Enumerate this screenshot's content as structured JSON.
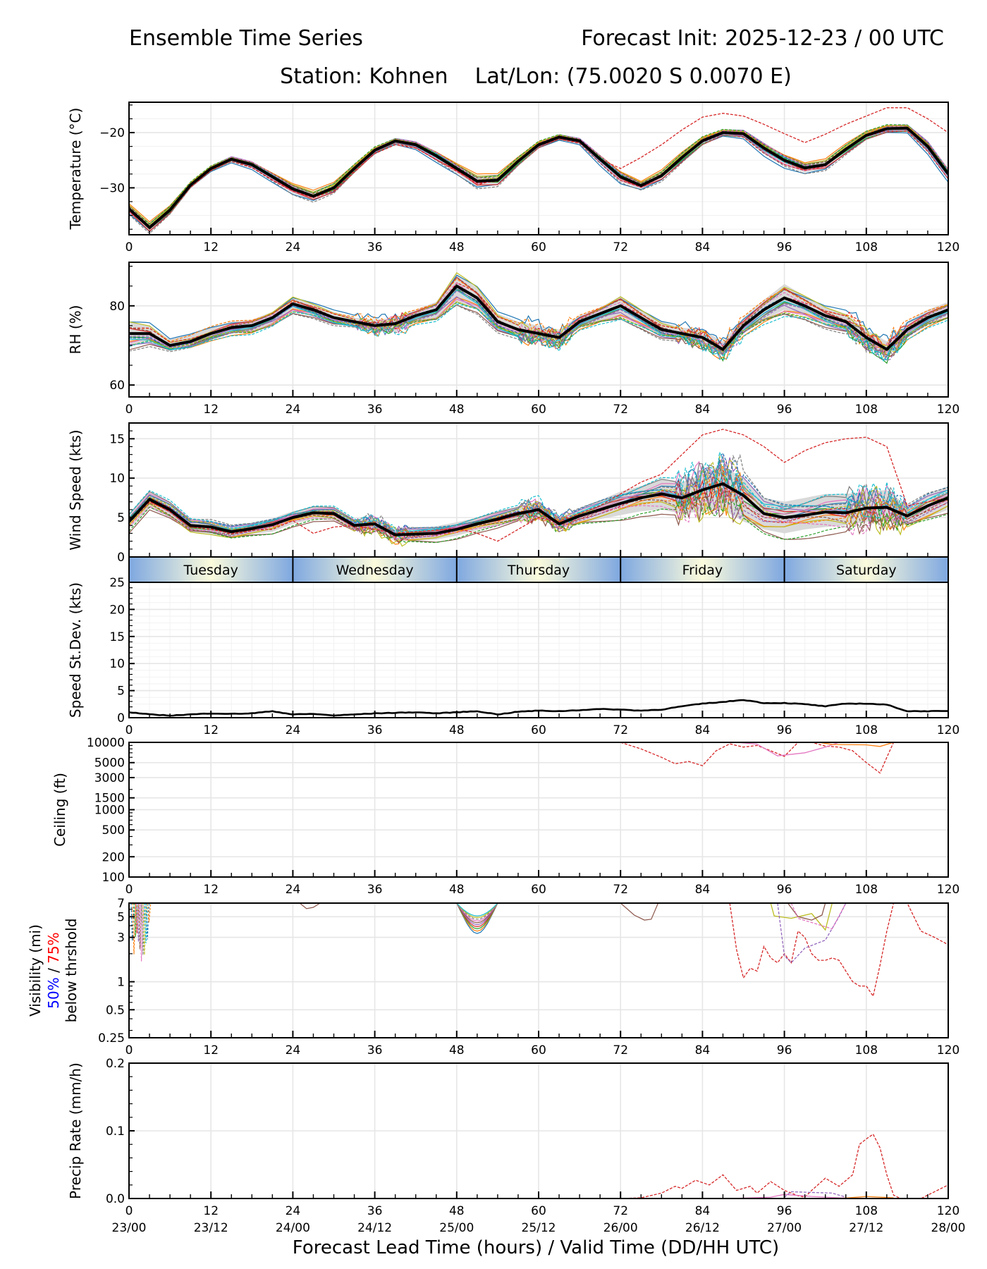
{
  "header": {
    "title_left": "Ensemble Time Series",
    "title_right": "Forecast Init: 2025-12-23 / 00 UTC",
    "subtitle": "Station: Kohnen    Lat/Lon: (75.0020 S 0.0070 E)"
  },
  "xaxis": {
    "label": "Forecast Lead Time (hours) / Valid Time (DD/HH UTC)",
    "range": [
      0,
      120
    ],
    "ticks": [
      0,
      12,
      24,
      36,
      48,
      60,
      72,
      84,
      96,
      108,
      120
    ],
    "tick_labels": [
      "0",
      "12",
      "24",
      "36",
      "48",
      "60",
      "72",
      "84",
      "96",
      "108",
      "120"
    ],
    "valid_time_labels": [
      "23/00",
      "23/12",
      "24/00",
      "24/12",
      "25/00",
      "25/12",
      "26/00",
      "26/12",
      "27/00",
      "27/12",
      "28/00"
    ]
  },
  "day_band": {
    "days": [
      "Tuesday",
      "Wednesday",
      "Thursday",
      "Friday",
      "Saturday"
    ],
    "edge_color": "#7fa8e0",
    "center_color": "#fbfbdc"
  },
  "colors": {
    "mean": "#000000",
    "spread": "#d9d9d9",
    "grid": "#e6e6e6",
    "members": [
      "#1f77b4",
      "#ff7f0e",
      "#2ca02c",
      "#d62728",
      "#9467bd",
      "#8c564b",
      "#e377c2",
      "#7f7f7f",
      "#bcbd22",
      "#17becf"
    ],
    "vis_50": "#0000ff",
    "vis_75": "#ff0000"
  },
  "chart_data": [
    {
      "id": "temperature",
      "type": "line",
      "ylabel": "Temperature (°C)",
      "ylim": [
        -38.5,
        -14.5
      ],
      "yticks": [
        -20,
        -30
      ],
      "ytick_labels": [
        "−20",
        "−30"
      ],
      "grid": true,
      "x": [
        0,
        3,
        6,
        9,
        12,
        15,
        18,
        21,
        24,
        27,
        30,
        33,
        36,
        39,
        42,
        45,
        48,
        51,
        54,
        57,
        60,
        63,
        66,
        69,
        72,
        75,
        78,
        81,
        84,
        87,
        90,
        93,
        96,
        99,
        102,
        105,
        108,
        111,
        114,
        117,
        120
      ],
      "mean": [
        -33.8,
        -37.2,
        -34.0,
        -29.5,
        -26.5,
        -24.8,
        -25.8,
        -28.0,
        -30.2,
        -31.5,
        -30.0,
        -26.5,
        -23.2,
        -21.5,
        -22.2,
        -24.2,
        -26.5,
        -28.8,
        -28.6,
        -25.2,
        -22.2,
        -20.8,
        -21.5,
        -24.8,
        -28.0,
        -29.6,
        -27.8,
        -24.5,
        -21.5,
        -20.0,
        -20.2,
        -22.8,
        -25.0,
        -26.4,
        -25.8,
        -23.0,
        -20.5,
        -19.3,
        -19.2,
        -22.5,
        -27.5
      ],
      "spread_low": [
        -34.5,
        -38.0,
        -34.6,
        -30.0,
        -27.0,
        -25.3,
        -26.4,
        -28.7,
        -31.0,
        -32.3,
        -30.8,
        -27.2,
        -23.8,
        -22.0,
        -22.8,
        -25.0,
        -27.3,
        -29.8,
        -29.5,
        -25.9,
        -22.8,
        -21.3,
        -22.0,
        -25.6,
        -28.9,
        -30.2,
        -28.6,
        -25.3,
        -22.2,
        -20.6,
        -20.9,
        -23.8,
        -26.0,
        -27.2,
        -26.6,
        -23.8,
        -21.2,
        -20.0,
        -19.9,
        -23.5,
        -28.5
      ],
      "spread_high": [
        -33.0,
        -36.4,
        -33.3,
        -29.0,
        -26.0,
        -24.3,
        -25.2,
        -27.3,
        -29.4,
        -30.7,
        -29.2,
        -25.8,
        -22.6,
        -21.0,
        -21.6,
        -23.4,
        -25.7,
        -27.8,
        -27.7,
        -24.5,
        -21.6,
        -20.3,
        -21.0,
        -24.0,
        -27.1,
        -29.0,
        -27.0,
        -23.7,
        -20.8,
        -19.4,
        -19.5,
        -21.8,
        -24.0,
        -25.6,
        -25.0,
        -22.2,
        -19.8,
        -18.6,
        -18.5,
        -21.5,
        -26.5
      ],
      "outlier_member": [
        -33.6,
        -37.5,
        -34.3,
        -29.8,
        -26.9,
        -25.0,
        -26.3,
        -28.6,
        -30.6,
        -31.8,
        -30.5,
        -27.0,
        -23.8,
        -22.2,
        -22.8,
        -24.9,
        -26.8,
        -29.5,
        -28.4,
        -25.3,
        -22.4,
        -21.2,
        -21.8,
        -24.8,
        -26.5,
        -24.5,
        -22.2,
        -19.5,
        -17.2,
        -16.5,
        -17.0,
        -18.5,
        -20.2,
        -21.8,
        -20.3,
        -18.5,
        -17.0,
        -15.5,
        -15.5,
        -17.5,
        -20.0
      ],
      "member_count": 20
    },
    {
      "id": "rh",
      "type": "line",
      "ylabel": "RH (%)",
      "ylim": [
        57,
        91
      ],
      "yticks": [
        80,
        60
      ],
      "ytick_labels": [
        "80",
        "60"
      ],
      "grid": true,
      "x": [
        0,
        3,
        6,
        9,
        12,
        15,
        18,
        21,
        24,
        27,
        30,
        33,
        36,
        39,
        42,
        45,
        48,
        51,
        54,
        57,
        60,
        63,
        66,
        69,
        72,
        75,
        78,
        81,
        84,
        87,
        90,
        93,
        96,
        99,
        102,
        105,
        108,
        111,
        114,
        117,
        120
      ],
      "mean": [
        73,
        73,
        70,
        71,
        73,
        74.5,
        75,
        77,
        80.5,
        79,
        77,
        76,
        75,
        75.5,
        77.5,
        79,
        85,
        82,
        76,
        74,
        73,
        72,
        76,
        78,
        80,
        77,
        74,
        73,
        72,
        69,
        75,
        79,
        82,
        80,
        77.5,
        76,
        72,
        69,
        74,
        77,
        79
      ],
      "spread_low": [
        70,
        70.5,
        69,
        70,
        71.5,
        73,
        73.5,
        75.5,
        78.5,
        77.5,
        75.5,
        74.5,
        73.5,
        73.5,
        76,
        77,
        81,
        79,
        74,
        72,
        71,
        70.5,
        74.5,
        76,
        77.5,
        75,
        72.5,
        71.5,
        70,
        67.5,
        73,
        76.5,
        79,
        77.5,
        75,
        73.5,
        70,
        67,
        72,
        75.5,
        77.5
      ],
      "spread_high": [
        76,
        75,
        71.5,
        73,
        74.5,
        76,
        76.5,
        78.5,
        82,
        80.5,
        78.5,
        77,
        76.5,
        77,
        79,
        81,
        88,
        84.5,
        78,
        76,
        75,
        74,
        77.5,
        79.5,
        82.5,
        79,
        76,
        74.5,
        74,
        71,
        77,
        81.5,
        85.5,
        82.5,
        79.5,
        78,
        74,
        71,
        76,
        79,
        81
      ],
      "member_count": 20
    },
    {
      "id": "wind_speed",
      "type": "line",
      "ylabel": "Wind Speed (kts)",
      "ylim": [
        0,
        17
      ],
      "yticks": [
        0,
        5,
        10,
        15
      ],
      "ytick_labels": [
        "0",
        "5",
        "10",
        "15"
      ],
      "grid": true,
      "x": [
        0,
        3,
        6,
        9,
        12,
        15,
        18,
        21,
        24,
        27,
        30,
        33,
        36,
        39,
        42,
        45,
        48,
        51,
        54,
        57,
        60,
        63,
        66,
        69,
        72,
        75,
        78,
        81,
        84,
        87,
        90,
        93,
        96,
        99,
        102,
        105,
        108,
        111,
        114,
        117,
        120
      ],
      "mean": [
        4.5,
        7.3,
        6.0,
        4.0,
        3.8,
        3.2,
        3.6,
        4.1,
        5.0,
        5.6,
        5.5,
        4.0,
        4.2,
        2.8,
        2.9,
        3.0,
        3.5,
        4.2,
        4.8,
        5.5,
        6.0,
        4.2,
        5.2,
        6.0,
        6.8,
        7.5,
        8.0,
        7.5,
        8.5,
        9.3,
        7.8,
        5.5,
        5.0,
        5.3,
        5.7,
        5.6,
        6.2,
        6.3,
        5.2,
        6.5,
        7.5
      ],
      "spread_low": [
        3.5,
        6.2,
        5.0,
        3.2,
        2.9,
        2.5,
        2.9,
        3.2,
        4.2,
        4.8,
        4.7,
        3.3,
        3.4,
        2.0,
        2.1,
        2.2,
        2.7,
        3.4,
        3.9,
        4.6,
        5.0,
        3.5,
        4.3,
        4.8,
        5.3,
        5.8,
        6.0,
        5.5,
        5.8,
        6.0,
        4.5,
        3.5,
        3.0,
        3.5,
        3.8,
        4.0,
        4.5,
        4.5,
        4.0,
        5.0,
        6.0
      ],
      "spread_high": [
        5.5,
        8.2,
        7.0,
        4.8,
        4.6,
        4.0,
        4.3,
        4.9,
        5.8,
        6.4,
        6.3,
        4.8,
        5.0,
        3.6,
        3.7,
        3.9,
        4.4,
        5.0,
        5.7,
        6.4,
        7.0,
        5.0,
        6.1,
        7.2,
        8.3,
        9.0,
        9.8,
        9.5,
        10.5,
        11.5,
        10.0,
        7.5,
        7.0,
        7.5,
        8.0,
        8.0,
        8.3,
        8.5,
        6.5,
        8.0,
        9.0
      ],
      "outlier_member": [
        4.5,
        7.0,
        5.8,
        3.8,
        3.5,
        3.0,
        3.4,
        3.5,
        4.6,
        3.0,
        3.8,
        4.0,
        3.5,
        3.0,
        3.2,
        3.4,
        3.6,
        3.0,
        2.0,
        3.5,
        5.0,
        4.5,
        5.5,
        6.5,
        8.0,
        9.5,
        10.5,
        13.0,
        15.5,
        16.2,
        15.5,
        14.0,
        12.0,
        13.5,
        14.5,
        15.0,
        15.2,
        14.0,
        6.5,
        7.0,
        7.5
      ],
      "member_count": 20
    },
    {
      "id": "speed_stdev",
      "type": "line",
      "ylabel": "Speed St.Dev. (kts)",
      "ylim": [
        0,
        25
      ],
      "yticks": [
        0,
        5,
        10,
        15,
        20,
        25
      ],
      "ytick_labels": [
        "0",
        "5",
        "10",
        "15",
        "20",
        "25"
      ],
      "grid": true,
      "x": [
        0,
        3,
        6,
        9,
        12,
        15,
        18,
        21,
        24,
        27,
        30,
        33,
        36,
        39,
        42,
        45,
        48,
        51,
        54,
        57,
        60,
        63,
        66,
        69,
        72,
        75,
        78,
        81,
        84,
        87,
        90,
        93,
        96,
        99,
        102,
        105,
        108,
        111,
        114,
        117,
        120
      ],
      "values": [
        1.0,
        0.6,
        0.4,
        0.6,
        0.8,
        0.7,
        0.8,
        1.2,
        0.6,
        0.7,
        0.4,
        0.6,
        0.8,
        0.9,
        1.0,
        0.8,
        1.0,
        1.2,
        0.6,
        1.1,
        1.3,
        1.2,
        1.4,
        1.6,
        1.5,
        1.3,
        1.5,
        2.1,
        2.6,
        2.9,
        3.3,
        2.7,
        2.7,
        2.5,
        2.1,
        2.6,
        2.6,
        2.4,
        1.2,
        1.2,
        1.2
      ]
    },
    {
      "id": "ceiling",
      "type": "line",
      "ylabel": "Ceiling (ft)",
      "yscale": "log",
      "ylim": [
        100,
        10000
      ],
      "yticks": [
        10000,
        5000,
        3000,
        1500,
        1000,
        500,
        200,
        100
      ],
      "ytick_labels": [
        "10000",
        "5000",
        "3000",
        "1500",
        "1000",
        "500",
        "200",
        "100"
      ],
      "grid": true,
      "x": [
        72,
        75,
        78,
        80,
        82,
        84,
        86,
        88,
        90,
        92,
        94,
        96,
        98,
        100,
        102,
        104,
        106,
        108,
        109,
        110,
        111,
        112
      ],
      "outlier_member": [
        10000,
        8000,
        6000,
        4800,
        5200,
        4500,
        7500,
        9500,
        8500,
        9000,
        7500,
        6200,
        10000,
        10000,
        8800,
        8500,
        7500,
        5000,
        4200,
        3500,
        6000,
        10000
      ],
      "member_count": 3
    },
    {
      "id": "visibility",
      "type": "line",
      "ylabel_lines": [
        "Visibility (mi)",
        "50% / 75%",
        "below thrshold"
      ],
      "ylabel_50": "50%",
      "ylabel_sep": " / ",
      "ylabel_75": "75%",
      "yscale": "log",
      "ylim": [
        0.25,
        7
      ],
      "yticks": [
        7,
        5,
        3,
        1,
        0.5,
        0.25
      ],
      "ytick_labels": [
        "7",
        "5",
        "3",
        "1",
        "0.5",
        "0.25"
      ],
      "grid": true,
      "x": [
        88,
        89,
        90,
        91,
        92,
        93,
        94,
        95,
        96,
        97,
        98,
        99,
        100,
        101,
        102,
        103,
        104,
        105,
        106,
        107,
        108,
        109,
        110,
        111,
        112,
        113,
        114,
        116,
        118,
        120
      ],
      "outlier_member": [
        7,
        2.2,
        1.1,
        1.4,
        1.3,
        2.4,
        1.8,
        1.6,
        2.0,
        1.6,
        3.5,
        3.0,
        2.0,
        1.7,
        1.7,
        1.8,
        1.7,
        1.3,
        1.0,
        0.9,
        0.9,
        0.7,
        1.5,
        3.5,
        7,
        7,
        7,
        3.5,
        3.0,
        2.5
      ],
      "member_count": 20
    },
    {
      "id": "precip_rate",
      "type": "line",
      "ylabel": "Precip Rate (mm/h)",
      "ylim": [
        0,
        0.2
      ],
      "yticks": [
        0.0,
        0.1,
        0.2
      ],
      "ytick_labels": [
        "0.0",
        "0.1",
        "0.2"
      ],
      "grid": true,
      "x": [
        72,
        75,
        78,
        80,
        81,
        83,
        85,
        87,
        89,
        91,
        92,
        94,
        96,
        97,
        98,
        99,
        100,
        102,
        104,
        106,
        107,
        108,
        109,
        110,
        111,
        112,
        113,
        114,
        116,
        118,
        120
      ],
      "outlier_member": [
        0.0,
        0.001,
        0.008,
        0.018,
        0.015,
        0.027,
        0.02,
        0.035,
        0.012,
        0.018,
        0.008,
        0.025,
        0.012,
        0.008,
        0.004,
        0.002,
        0.012,
        0.03,
        0.018,
        0.035,
        0.08,
        0.088,
        0.095,
        0.075,
        0.035,
        0.005,
        0.0,
        0.0,
        0.0,
        0.01,
        0.02
      ],
      "member_count": 20
    }
  ]
}
